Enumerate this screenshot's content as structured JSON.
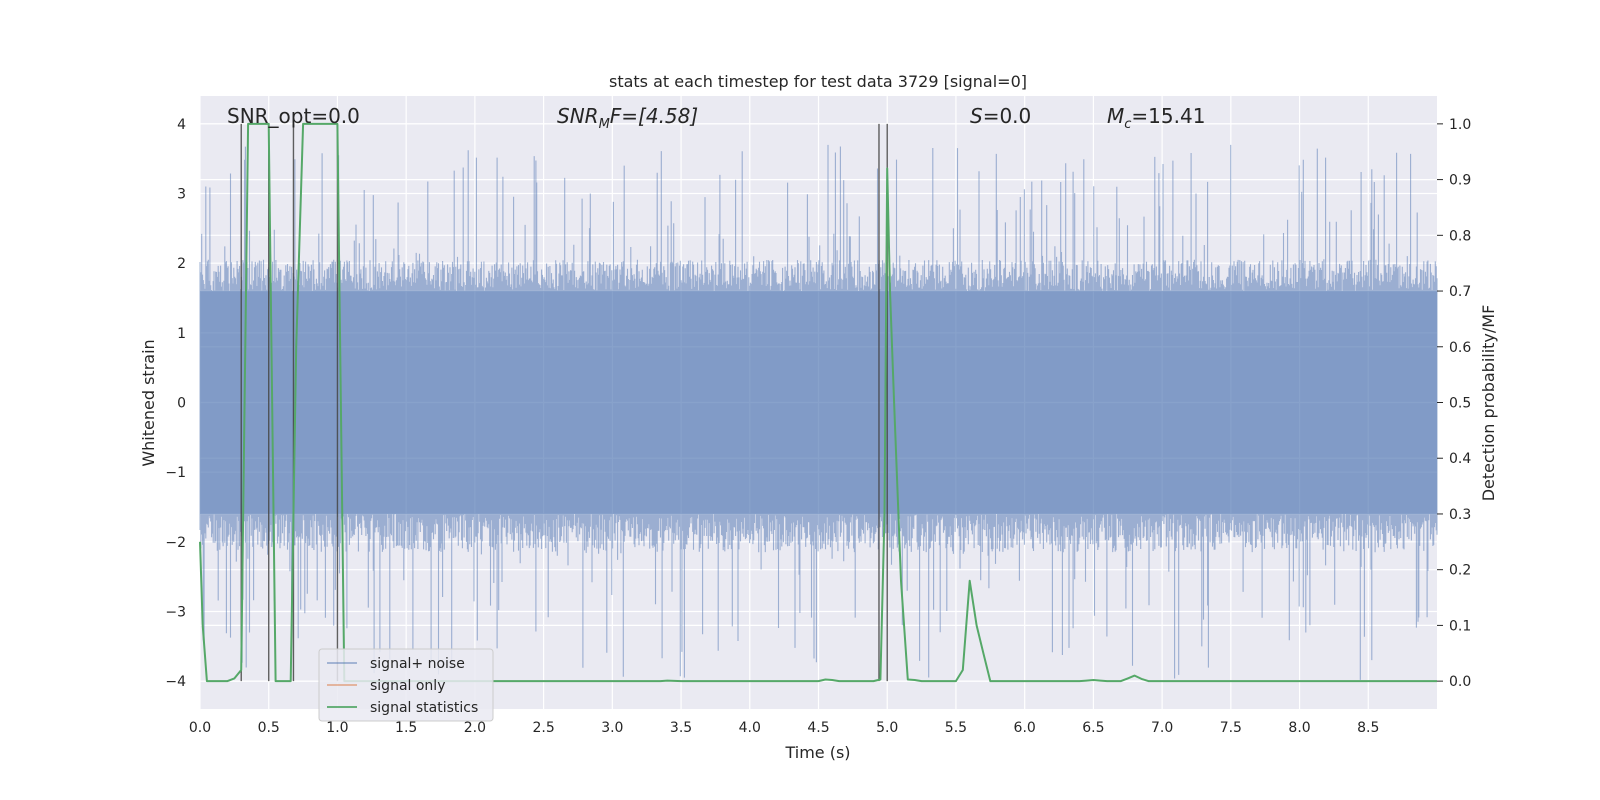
{
  "chart_data": {
    "type": "line",
    "title": "stats at each timestep for test data 3729 [signal=0]",
    "xlabel": "Time (s)",
    "ylabel_left": "Whitened strain",
    "ylabel_right": "Detection probability/MF",
    "xlim": [
      0.0,
      9.0
    ],
    "ylim_left": [
      -4.4,
      4.4
    ],
    "ylim_right": [
      -0.05,
      1.05
    ],
    "xticks": [
      "0.0",
      "0.5",
      "1.0",
      "1.5",
      "2.0",
      "2.5",
      "3.0",
      "3.5",
      "4.0",
      "4.5",
      "5.0",
      "5.5",
      "6.0",
      "6.5",
      "7.0",
      "7.5",
      "8.0",
      "8.5"
    ],
    "yticks_left": [
      "4",
      "3",
      "2",
      "1",
      "0",
      "−1",
      "−2",
      "−3",
      "−4"
    ],
    "yticks_right": [
      "1.0",
      "0.9",
      "0.8",
      "0.7",
      "0.6",
      "0.5",
      "0.4",
      "0.3",
      "0.2",
      "0.1",
      "0.0"
    ],
    "annotations": {
      "snr_opt": "SNR_opt=0.0",
      "snr_mf_main": "SNR",
      "snr_mf_sub": "M",
      "snr_mf_rest": "F=[4.58]",
      "s_main": "S",
      "s_rest": "=0.0",
      "mc_main": "M",
      "mc_sub": "c",
      "mc_rest": "=15.41"
    },
    "legend": {
      "location": "lower-left",
      "entries": [
        {
          "label": "signal+ noise",
          "color": "#4c72b0"
        },
        {
          "label": "signal only",
          "color": "#dd8452"
        },
        {
          "label": "signal statistics",
          "color": "#55a868"
        }
      ]
    },
    "vlines_time": [
      0.3,
      0.5,
      0.68,
      1.0,
      4.94,
      5.0
    ],
    "vline_range_left": [
      -4.0,
      4.0
    ],
    "noise_series": {
      "name": "signal+ noise",
      "color": "#4c72b0",
      "time_range": [
        0.0,
        9.0
      ],
      "core_band": [
        -1.6,
        1.6
      ],
      "peak_max": 3.7,
      "peak_min": -4.0,
      "seed": 3729
    },
    "signal_statistics": {
      "name": "signal statistics",
      "color": "#55a868",
      "x": [
        0.0,
        0.02,
        0.05,
        0.1,
        0.15,
        0.2,
        0.25,
        0.3,
        0.35,
        0.4,
        0.5,
        0.55,
        0.6,
        0.62,
        0.66,
        0.7,
        0.75,
        0.8,
        0.85,
        0.9,
        0.95,
        1.0,
        1.05,
        1.1,
        1.5,
        2.0,
        2.5,
        3.0,
        3.3,
        3.35,
        3.4,
        3.5,
        4.0,
        4.5,
        4.55,
        4.6,
        4.65,
        4.7,
        4.75,
        4.8,
        4.85,
        4.9,
        4.95,
        4.98,
        5.0,
        5.02,
        5.05,
        5.1,
        5.15,
        5.2,
        5.25,
        5.3,
        5.4,
        5.45,
        5.5,
        5.55,
        5.6,
        5.65,
        5.7,
        5.75,
        5.8,
        5.9,
        6.0,
        6.2,
        6.4,
        6.45,
        6.5,
        6.55,
        6.6,
        6.7,
        6.75,
        6.8,
        6.85,
        6.9,
        7.0,
        7.5,
        8.0,
        8.5,
        9.0
      ],
      "y": [
        0.25,
        0.1,
        0.0,
        0.0,
        0.0,
        0.0,
        0.005,
        0.02,
        1.0,
        1.0,
        1.0,
        0.0,
        0.0,
        0.0,
        0.0,
        0.6,
        1.0,
        1.0,
        1.0,
        1.0,
        1.0,
        1.0,
        0.0,
        0.0,
        0.0,
        0.0,
        0.0,
        0.0,
        0.0,
        0.0,
        0.001,
        0.0,
        0.0,
        0.0,
        0.003,
        0.002,
        0.0,
        0.0,
        0.0,
        0.0,
        0.0,
        0.0,
        0.003,
        0.3,
        0.92,
        0.7,
        0.5,
        0.18,
        0.003,
        0.002,
        0.0,
        0.0,
        0.0,
        0.0,
        0.0,
        0.02,
        0.18,
        0.1,
        0.05,
        0.0,
        0.0,
        0.0,
        0.0,
        0.0,
        0.0,
        0.001,
        0.002,
        0.001,
        0.0,
        0.0,
        0.005,
        0.01,
        0.004,
        0.0,
        0.0,
        0.0,
        0.0,
        0.0,
        0.0
      ]
    },
    "signal_only": {
      "name": "signal only",
      "color": "#dd8452",
      "values": []
    }
  },
  "colors": {
    "axes_bg": "#eaeaf2",
    "grid": "#ffffff",
    "noise": "#4c72b0",
    "stats": "#55a868",
    "vline": "#444444"
  }
}
